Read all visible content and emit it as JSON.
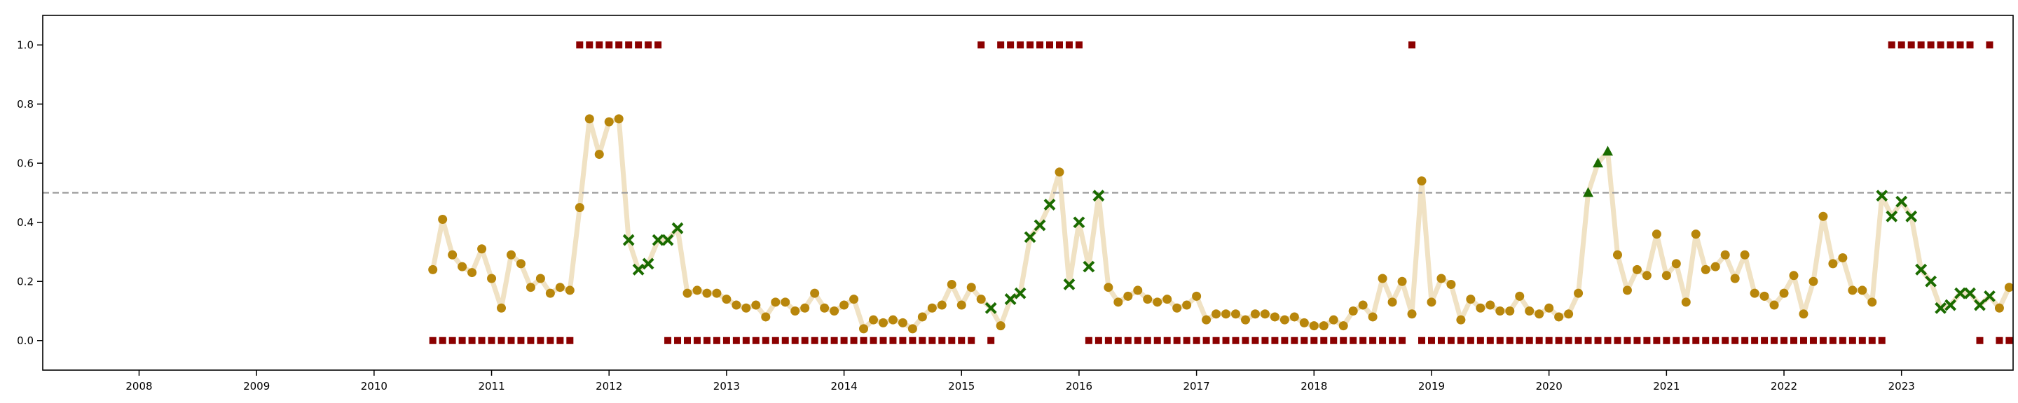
{
  "chart_data": {
    "type": "line",
    "title": "",
    "xlabel": "",
    "ylabel": "",
    "xlim": [
      2007.18,
      2023.95
    ],
    "ylim": [
      -0.1,
      1.1
    ],
    "x_ticks": [
      {
        "value": 2008,
        "label": "2008"
      },
      {
        "value": 2009,
        "label": "2009"
      },
      {
        "value": 2010,
        "label": "2010"
      },
      {
        "value": 2011,
        "label": "2011"
      },
      {
        "value": 2012,
        "label": "2012"
      },
      {
        "value": 2013,
        "label": "2013"
      },
      {
        "value": 2014,
        "label": "2014"
      },
      {
        "value": 2015,
        "label": "2015"
      },
      {
        "value": 2016,
        "label": "2016"
      },
      {
        "value": 2017,
        "label": "2017"
      },
      {
        "value": 2018,
        "label": "2018"
      },
      {
        "value": 2019,
        "label": "2019"
      },
      {
        "value": 2020,
        "label": "2020"
      },
      {
        "value": 2021,
        "label": "2021"
      },
      {
        "value": 2022,
        "label": "2022"
      },
      {
        "value": 2023,
        "label": "2023"
      }
    ],
    "y_ticks": [
      {
        "value": 0.0,
        "label": "0.0"
      },
      {
        "value": 0.2,
        "label": "0.2"
      },
      {
        "value": 0.4,
        "label": "0.4"
      },
      {
        "value": 0.6,
        "label": "0.6"
      },
      {
        "value": 0.8,
        "label": "0.8"
      },
      {
        "value": 1.0,
        "label": "1.0"
      }
    ],
    "threshold": {
      "y": 0.5,
      "style": "dashed",
      "color": "#999999"
    },
    "grid": false,
    "legend": "none",
    "colors": {
      "line": "#f0e2c4",
      "circle": "#b8860b",
      "cross": "#1a6b00",
      "triangle": "#1a6b00",
      "square": "#8b0000",
      "axis": "#000000"
    },
    "series_values": [
      0.24,
      0.41,
      0.29,
      0.25,
      0.23,
      0.31,
      0.21,
      0.11,
      0.29,
      0.26,
      0.18,
      0.21,
      0.16,
      0.18,
      0.17,
      0.45,
      0.75,
      0.63,
      0.74,
      0.75,
      0.34,
      0.24,
      0.26,
      0.34,
      0.34,
      0.38,
      0.16,
      0.17,
      0.16,
      0.16,
      0.14,
      0.12,
      0.11,
      0.12,
      0.08,
      0.13,
      0.13,
      0.1,
      0.11,
      0.16,
      0.11,
      0.1,
      0.12,
      0.14,
      0.04,
      0.07,
      0.06,
      0.07,
      0.06,
      0.04,
      0.08,
      0.11,
      0.12,
      0.19,
      0.12,
      0.18,
      0.14,
      0.11,
      0.05,
      0.14,
      0.16,
      0.35,
      0.39,
      0.46,
      0.57,
      0.19,
      0.4,
      0.25,
      0.49,
      0.18,
      0.13,
      0.15,
      0.17,
      0.14,
      0.13,
      0.14,
      0.11,
      0.12,
      0.15,
      0.07,
      0.09,
      0.09,
      0.09,
      0.07,
      0.09,
      0.09,
      0.08,
      0.07,
      0.08,
      0.06,
      0.05,
      0.05,
      0.07,
      0.05,
      0.1,
      0.12,
      0.08,
      0.21,
      0.13,
      0.2,
      0.09,
      0.54,
      0.13,
      0.21,
      0.19,
      0.07,
      0.14,
      0.11,
      0.12,
      0.1,
      0.1,
      0.15,
      0.1,
      0.09,
      0.11,
      0.08,
      0.09,
      0.16,
      0.5,
      0.6,
      0.64,
      0.29,
      0.17,
      0.24,
      0.22,
      0.36,
      0.22,
      0.26,
      0.13,
      0.36,
      0.24,
      0.25,
      0.29,
      0.21,
      0.29,
      0.16,
      0.15,
      0.12,
      0.16,
      0.22,
      0.09,
      0.2,
      0.42,
      0.26,
      0.28,
      0.17,
      0.17,
      0.13,
      0.49,
      0.42,
      0.47,
      0.42,
      0.24,
      0.2,
      0.11,
      0.12,
      0.16,
      0.16,
      0.12,
      0.15,
      0.11,
      0.18
    ],
    "marker_types": [
      "circle",
      "circle",
      "circle",
      "circle",
      "circle",
      "circle",
      "circle",
      "circle",
      "circle",
      "circle",
      "circle",
      "circle",
      "circle",
      "circle",
      "circle",
      "circle",
      "circle",
      "circle",
      "circle",
      "circle",
      "cross",
      "cross",
      "cross",
      "cross",
      "cross",
      "cross",
      "circle",
      "circle",
      "circle",
      "circle",
      "circle",
      "circle",
      "circle",
      "circle",
      "circle",
      "circle",
      "circle",
      "circle",
      "circle",
      "circle",
      "circle",
      "circle",
      "circle",
      "circle",
      "circle",
      "circle",
      "circle",
      "circle",
      "circle",
      "circle",
      "circle",
      "circle",
      "circle",
      "circle",
      "circle",
      "circle",
      "circle",
      "cross",
      "circle",
      "cross",
      "cross",
      "cross",
      "cross",
      "cross",
      "circle",
      "cross",
      "cross",
      "cross",
      "cross",
      "circle",
      "circle",
      "circle",
      "circle",
      "circle",
      "circle",
      "circle",
      "circle",
      "circle",
      "circle",
      "circle",
      "circle",
      "circle",
      "circle",
      "circle",
      "circle",
      "circle",
      "circle",
      "circle",
      "circle",
      "circle",
      "circle",
      "circle",
      "circle",
      "circle",
      "circle",
      "circle",
      "circle",
      "circle",
      "circle",
      "circle",
      "circle",
      "circle",
      "circle",
      "circle",
      "circle",
      "circle",
      "circle",
      "circle",
      "circle",
      "circle",
      "circle",
      "circle",
      "circle",
      "circle",
      "circle",
      "circle",
      "circle",
      "circle",
      "triangle",
      "triangle",
      "triangle",
      "circle",
      "circle",
      "circle",
      "circle",
      "circle",
      "circle",
      "circle",
      "circle",
      "circle",
      "circle",
      "circle",
      "circle",
      "circle",
      "circle",
      "circle",
      "circle",
      "circle",
      "circle",
      "circle",
      "circle",
      "circle",
      "circle",
      "circle",
      "circle",
      "circle",
      "circle",
      "circle",
      "cross",
      "cross",
      "cross",
      "cross",
      "cross",
      "cross",
      "cross",
      "cross",
      "cross",
      "cross",
      "cross",
      "cross",
      "circle",
      "circle"
    ],
    "signal_values": [
      0,
      0,
      0,
      0,
      0,
      0,
      0,
      0,
      0,
      0,
      0,
      0,
      0,
      0,
      0,
      1,
      1,
      1,
      1,
      1,
      1,
      1,
      1,
      1,
      0,
      0,
      0,
      0,
      0,
      0,
      0,
      0,
      0,
      0,
      0,
      0,
      0,
      0,
      0,
      0,
      0,
      0,
      0,
      0,
      0,
      0,
      0,
      0,
      0,
      0,
      0,
      0,
      0,
      0,
      0,
      0,
      1,
      0,
      1,
      1,
      1,
      1,
      1,
      1,
      1,
      1,
      1,
      0,
      0,
      0,
      0,
      0,
      0,
      0,
      0,
      0,
      0,
      0,
      0,
      0,
      0,
      0,
      0,
      0,
      0,
      0,
      0,
      0,
      0,
      0,
      0,
      0,
      0,
      0,
      0,
      0,
      0,
      0,
      0,
      0,
      1,
      0,
      0,
      0,
      0,
      0,
      0,
      0,
      0,
      0,
      0,
      0,
      0,
      0,
      0,
      0,
      0,
      0,
      0,
      0,
      0,
      0,
      0,
      0,
      0,
      0,
      0,
      0,
      0,
      0,
      0,
      0,
      0,
      0,
      0,
      0,
      0,
      0,
      0,
      0,
      0,
      0,
      0,
      0,
      0,
      0,
      0,
      0,
      0,
      1,
      1,
      1,
      1,
      1,
      1,
      1,
      1,
      1,
      0,
      1,
      0,
      0
    ]
  }
}
